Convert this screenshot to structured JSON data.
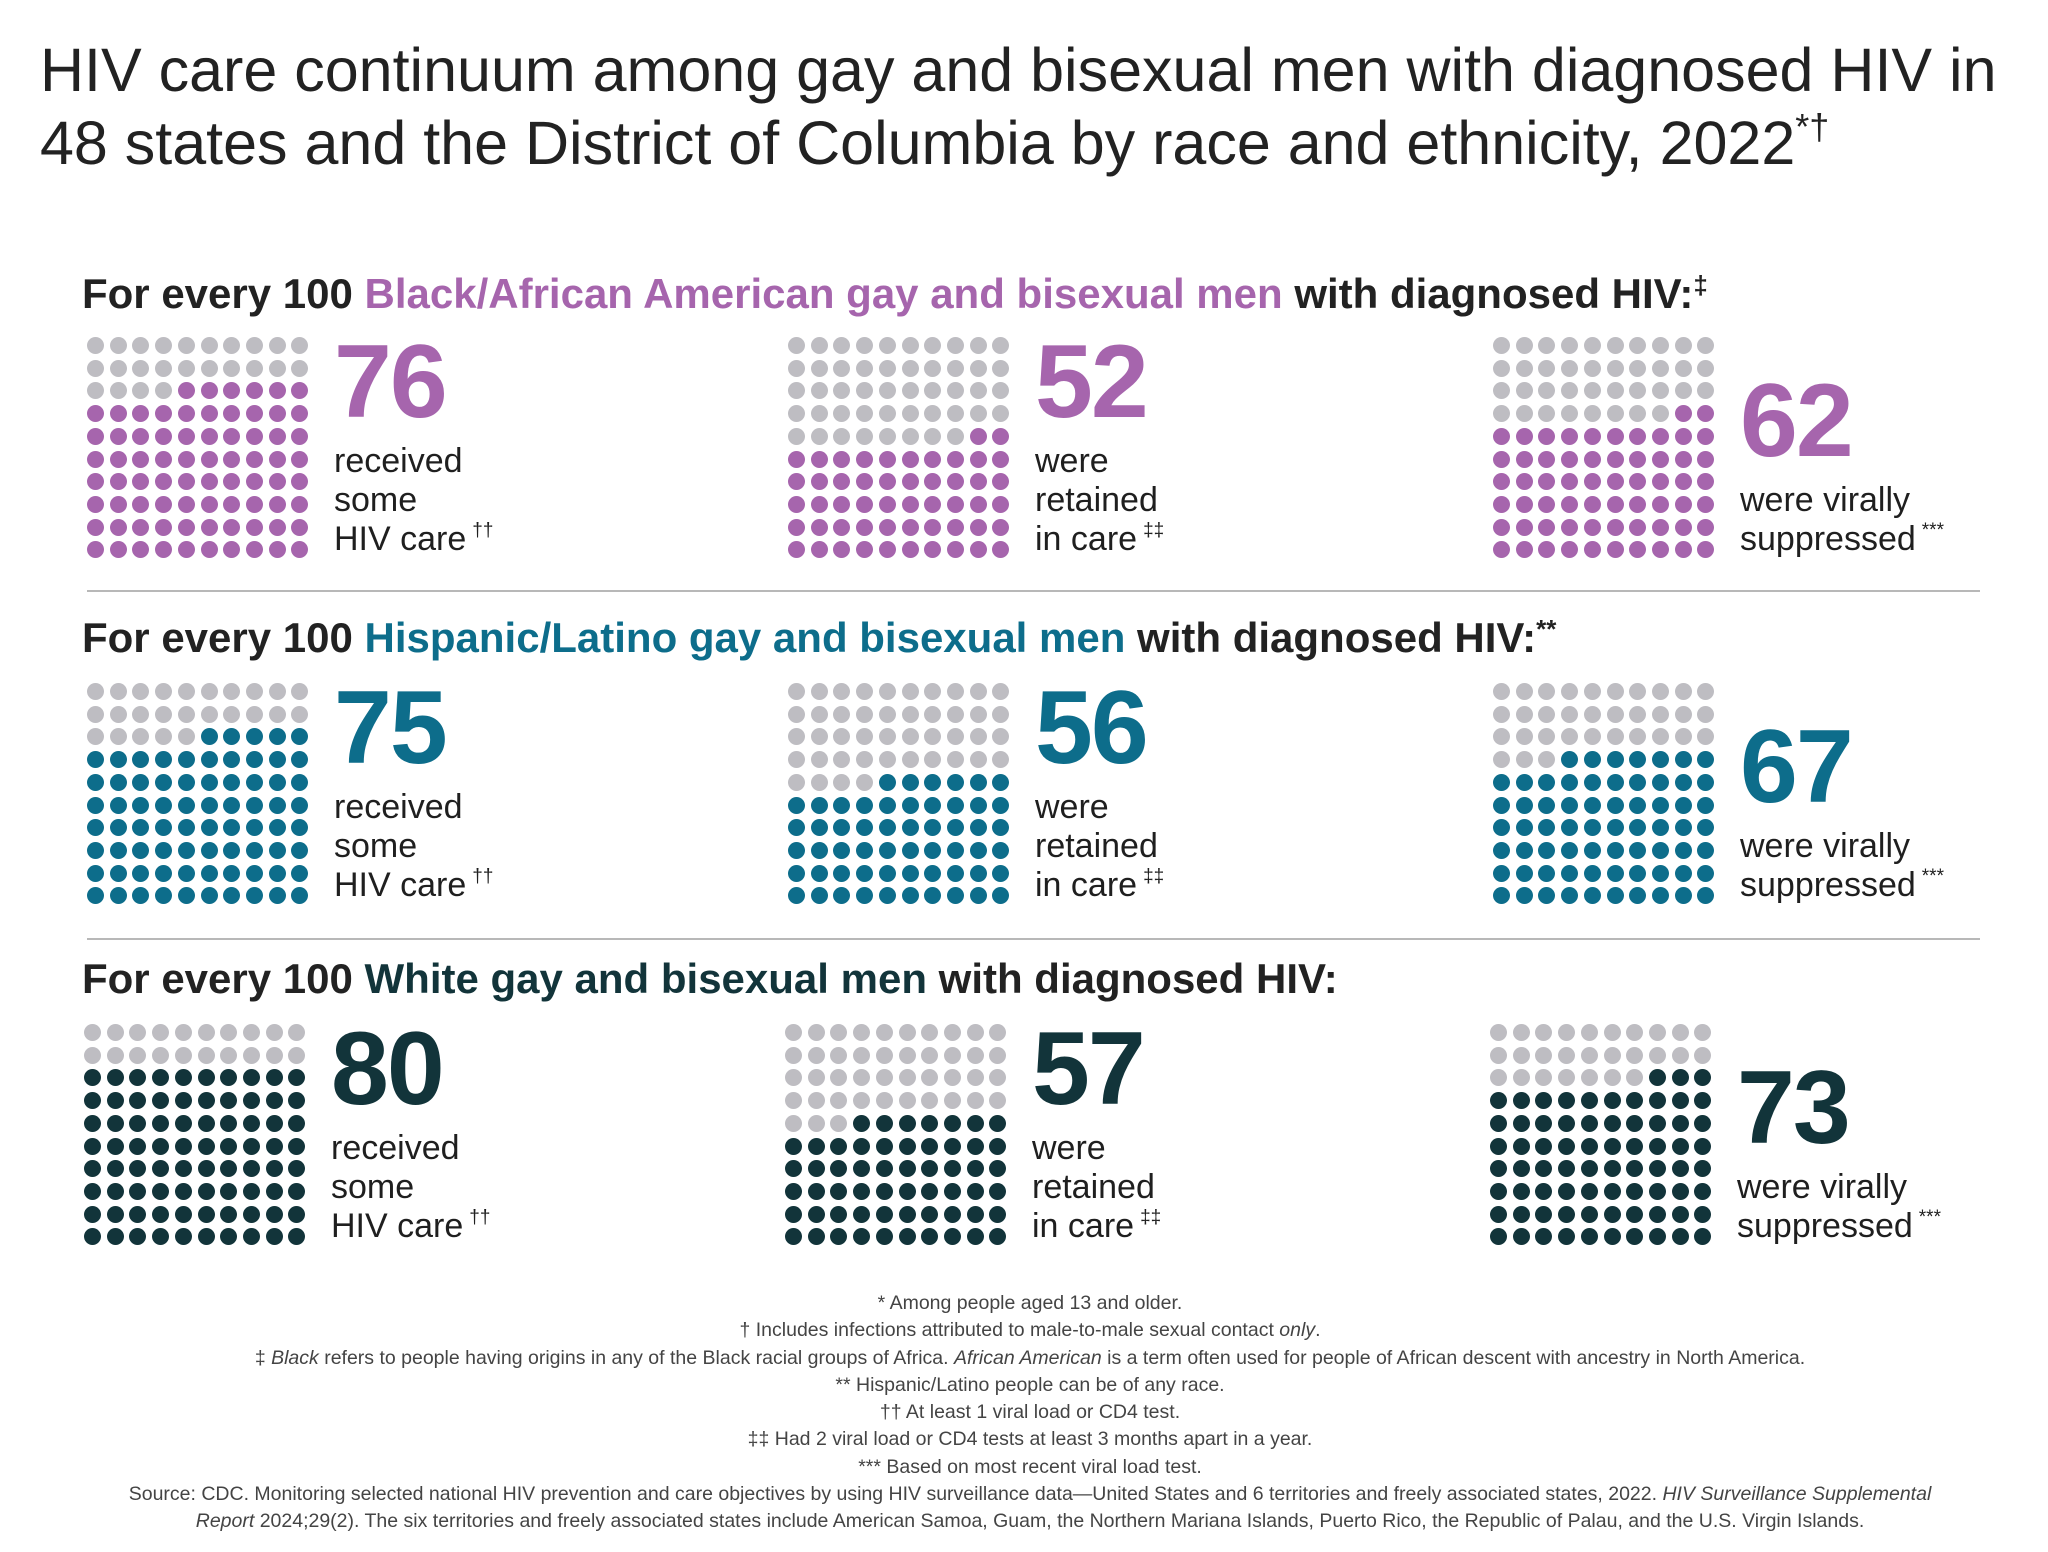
{
  "title": {
    "text": "HIV care continuum among gay and bisexual men with diagnosed HIV in 48 states and the District of Columbia by race and ethnicity, 2022",
    "marks": "*†"
  },
  "colors": {
    "purple": "#a665ad",
    "teal": "#0d6d8b",
    "dark": "#12343a",
    "gray": "#bebdc2"
  },
  "sections": [
    {
      "prefix": "For every 100 ",
      "group": "Black/African American gay and bisexual men",
      "suffix": " with diagnosed HIV:",
      "mark": "‡",
      "color": "#a665ad",
      "stats": [
        {
          "value": 76,
          "lines": [
            "received",
            "some",
            "HIV care"
          ],
          "mark": "††"
        },
        {
          "value": 52,
          "lines": [
            "were",
            "retained",
            "in care"
          ],
          "mark": "‡‡"
        },
        {
          "value": 62,
          "lines": [
            "were virally",
            "suppressed"
          ],
          "mark": "***"
        }
      ]
    },
    {
      "prefix": "For every 100 ",
      "group": "Hispanic/Latino gay and bisexual men",
      "suffix": " with diagnosed HIV:",
      "mark": "**",
      "color": "#0d6d8b",
      "stats": [
        {
          "value": 75,
          "lines": [
            "received",
            "some",
            "HIV care"
          ],
          "mark": "††"
        },
        {
          "value": 56,
          "lines": [
            "were",
            "retained",
            "in care"
          ],
          "mark": "‡‡"
        },
        {
          "value": 67,
          "lines": [
            "were virally",
            "suppressed"
          ],
          "mark": "***"
        }
      ]
    },
    {
      "prefix": "For every 100 ",
      "group": "White gay and bisexual men",
      "suffix": " with diagnosed HIV:",
      "mark": "",
      "color": "#12343a",
      "stats": [
        {
          "value": 80,
          "lines": [
            "received",
            "some",
            "HIV care"
          ],
          "mark": "††"
        },
        {
          "value": 57,
          "lines": [
            "were",
            "retained",
            "in care"
          ],
          "mark": "‡‡"
        },
        {
          "value": 73,
          "lines": [
            "were virally",
            "suppressed"
          ],
          "mark": "***"
        }
      ]
    }
  ],
  "footnotes": {
    "f1": "* Among people aged 13 and older.",
    "f2a": "† Includes infections attributed to male-to-male sexual contact ",
    "f2b": "only",
    "f2c": ".",
    "f3a": "‡ ",
    "f3b": "Black",
    "f3c": " refers to people having origins in any of the Black racial groups of Africa. ",
    "f3d": "African American",
    "f3e": " is a term often used for people of African descent with ancestry in North America.",
    "f4": "** Hispanic/Latino people can be of any race.",
    "f5": "†† At least 1 viral load or CD4 test.",
    "f6": "‡‡ Had 2 viral load or CD4 tests at least 3 months apart in a year.",
    "f7": "*** Based on most recent viral load test.",
    "s1a": "Source: CDC. Monitoring selected national HIV prevention and care objectives by using HIV surveillance data—United States and 6 territories and freely associated states, 2022. ",
    "s1b": "HIV Surveillance Supplemental",
    "s2a": "Report",
    "s2b": " 2024;29(2). The six territories and freely associated states include American Samoa, Guam, the Northern Mariana Islands, Puerto Rico, the Republic of Palau, and the U.S. Virgin Islands."
  }
}
